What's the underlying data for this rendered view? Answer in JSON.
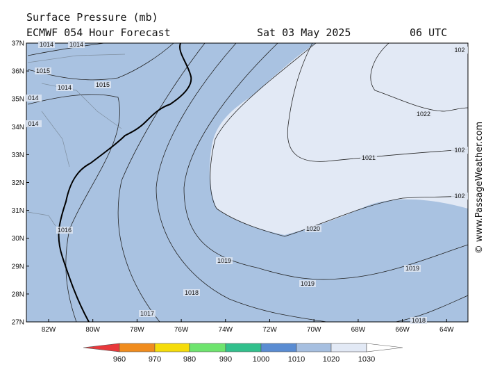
{
  "header": {
    "title": "Surface Pressure (mb)",
    "subtitle": "ECMWF 054 Hour Forecast",
    "date": "Sat 03 May 2025",
    "time": "06 UTC"
  },
  "map": {
    "lat_labels": [
      "37N",
      "36N",
      "35N",
      "34N",
      "33N",
      "32N",
      "31N",
      "30N",
      "29N",
      "28N",
      "27N"
    ],
    "lon_labels": [
      "82W",
      "80W",
      "78W",
      "76W",
      "74W",
      "72W",
      "70W",
      "68W",
      "66W",
      "64W"
    ],
    "contour_labels": [
      "1014",
      "1014",
      "1015",
      "1014",
      "1015",
      "014",
      "014",
      "1016",
      "1017",
      "1018",
      "1019",
      "1019",
      "1019",
      "1020",
      "1021",
      "1022",
      "102",
      "102",
      "102",
      "1018"
    ]
  },
  "legend": {
    "ticks": [
      "960",
      "970",
      "980",
      "990",
      "1000",
      "1010",
      "1020",
      "1030"
    ],
    "colors": [
      "#e8383b",
      "#f08c1e",
      "#f5dc0a",
      "#6ee46e",
      "#32c08c",
      "#5a8cd2",
      "#a6bfe0",
      "#e2e9f5",
      "#ffffff"
    ]
  },
  "credit": "© www.PassageWeather.com"
}
